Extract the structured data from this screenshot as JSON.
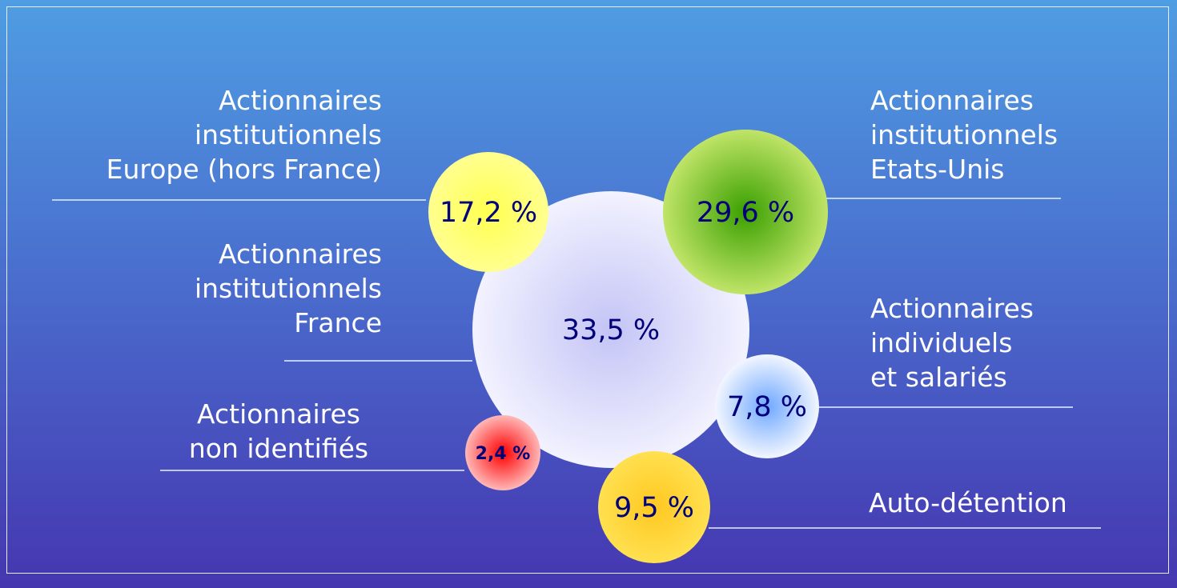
{
  "chart_data": {
    "type": "bubble",
    "categories": [
      "Actionnaires\ninstitutionnels\nFrance",
      "Actionnaires\ninstitutionnels\nEurope (hors France)",
      "Actionnaires\ninstitutionnels\nEtats-Unis",
      "Actionnaires\nindividuels\net salariés",
      "Auto-détention",
      "Actionnaires\nnon identifiés"
    ],
    "values": [
      33.5,
      17.2,
      29.6,
      7.8,
      9.5,
      2.4
    ],
    "value_labels": [
      "33,5 %",
      "17,2 %",
      "29,6 %",
      "7,8 %",
      "9,5 %",
      "2,4 %"
    ],
    "colors": [
      "#c4c4f6",
      "#ffff50",
      "#3aa000",
      "#6fa8ff",
      "#ffc820",
      "#ff0000"
    ]
  }
}
